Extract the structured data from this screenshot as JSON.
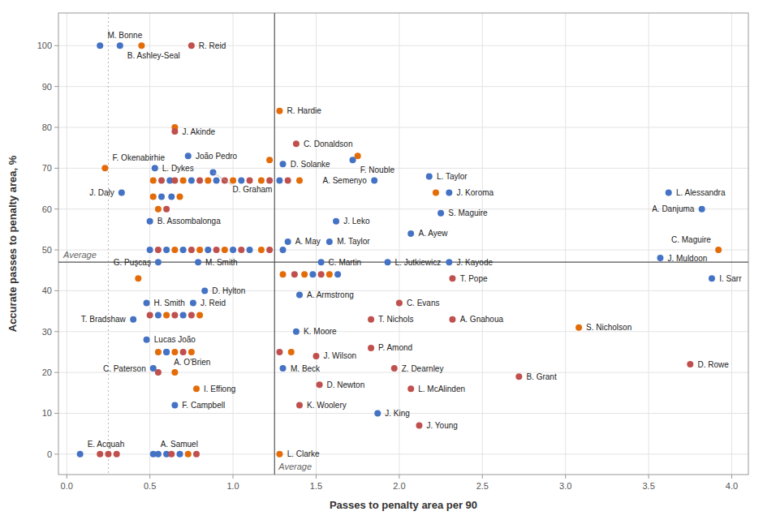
{
  "chart_data": {
    "type": "scatter",
    "xlabel": "Passes to penalty area per 90",
    "ylabel": "Accurate passes to penalty area, %",
    "xlim": [
      -0.05,
      4.1
    ],
    "ylim": [
      -5,
      108
    ],
    "xticks": [
      {
        "value": 0,
        "label": "0.0"
      },
      0.5,
      {
        "value": 1,
        "label": "1.0"
      },
      1.5,
      {
        "value": 2,
        "label": "2.0"
      },
      2.5,
      {
        "value": 3,
        "label": "3.0"
      },
      3.5,
      {
        "value": 4,
        "label": "4.0"
      }
    ],
    "yticks": [
      0,
      10,
      20,
      30,
      40,
      50,
      60,
      70,
      80,
      90,
      100
    ],
    "grid": true,
    "reference_lines": [
      {
        "axis": "x",
        "value": 0.25,
        "line_style": "dotted"
      },
      {
        "axis": "x",
        "value": 1.25,
        "line_style": "solid",
        "label": "Average"
      },
      {
        "axis": "y",
        "value": 47,
        "line_style": "solid",
        "label": "Average"
      }
    ],
    "series": [
      {
        "x": [
          0.45,
          0.65,
          1.22,
          1.75,
          0.52,
          0.57,
          0.62,
          0.65,
          0.7,
          0.75,
          0.8,
          0.85,
          0.9,
          0.95,
          1.0,
          1.05,
          1.1,
          1.17,
          1.22,
          1.28,
          1.33,
          1.4,
          0.52,
          0.57,
          0.63,
          0.68,
          0.55,
          0.6,
          2.22,
          0.5,
          0.55,
          0.6,
          0.65,
          0.7,
          0.75,
          0.8,
          0.85,
          0.9,
          0.95,
          1.0,
          1.05,
          1.1,
          1.17,
          1.22,
          1.3,
          1.3,
          1.37,
          1.43,
          1.48,
          1.53,
          1.58,
          1.63,
          0.43,
          0.5,
          0.55,
          0.6,
          0.65,
          0.7,
          0.75,
          0.8,
          0.55,
          0.6,
          0.65,
          0.7,
          0.75,
          1.28,
          1.35,
          0.55,
          0.65,
          0.2,
          0.25,
          0.3,
          0.55,
          0.6,
          0.63,
          0.68,
          0.73,
          0.78
        ],
        "values": [
          100,
          80,
          72,
          73,
          67,
          67,
          67,
          67,
          67,
          67,
          67,
          67,
          67,
          67,
          67,
          67,
          67,
          67,
          67,
          67,
          67,
          67,
          63,
          63,
          63,
          63,
          60,
          60,
          64,
          50,
          50,
          50,
          50,
          50,
          50,
          50,
          50,
          50,
          50,
          50,
          50,
          50,
          50,
          50,
          50,
          44,
          44,
          44,
          44,
          44,
          44,
          44,
          43,
          34,
          34,
          34,
          34,
          34,
          34,
          34,
          25,
          25,
          25,
          25,
          25,
          25,
          25,
          20,
          20,
          0,
          0,
          0,
          0,
          0,
          0,
          0,
          0,
          0
        ],
        "colors": [
          "#E36C09",
          "#E36C09",
          "#E36C09",
          "#E36C09",
          "#E36C09",
          "#C0504D",
          "#4472C4",
          "#C0504D",
          "#E36C09",
          "#4472C4",
          "#C0504D",
          "#E36C09",
          "#4472C4",
          "#C0504D",
          "#E36C09",
          "#4472C4",
          "#C0504D",
          "#E36C09",
          "#C0504D",
          "#4472C4",
          "#C0504D",
          "#E36C09",
          "#E36C09",
          "#4472C4",
          "#4472C4",
          "#E36C09",
          "#E36C09",
          "#C0504D",
          "#E36C09",
          "#4472C4",
          "#C0504D",
          "#4472C4",
          "#E36C09",
          "#4472C4",
          "#C0504D",
          "#E36C09",
          "#4472C4",
          "#C0504D",
          "#E36C09",
          "#4472C4",
          "#C0504D",
          "#4472C4",
          "#E36C09",
          "#C0504D",
          "#4472C4",
          "#E36C09",
          "#C0504D",
          "#E36C09",
          "#4472C4",
          "#C0504D",
          "#E36C09",
          "#4472C4",
          "#E36C09",
          "#C0504D",
          "#4472C4",
          "#E36C09",
          "#C0504D",
          "#4472C4",
          "#C0504D",
          "#E36C09",
          "#E36C09",
          "#4472C4",
          "#E36C09",
          "#C0504D",
          "#E36C09",
          "#C0504D",
          "#E36C09",
          "#C0504D",
          "#E36C09",
          "#C0504D",
          "#C0504D",
          "#C0504D",
          "#4472C4",
          "#4472C4",
          "#C0504D",
          "#4472C4",
          "#E36C09",
          "#C0504D"
        ]
      },
      {
        "labels": [
          "M. Bonne",
          "B. Ashley-Seal",
          "R. Reid",
          "R. Hardie",
          "J. Akinde",
          "C. Donaldson",
          "João Pedro",
          "D. Solanke",
          "F. Nouble",
          "F. Okenabirhie",
          "L. Dykes",
          "D. Graham",
          "L. Taylor",
          "A. Semenyo",
          "J. Daly",
          "J. Koroma",
          "S. Maguire",
          "B. Assombalonga",
          "J. Leko",
          "A. Ayew",
          "L. Alessandra",
          "A. Danjuma",
          "A. May",
          "M. Taylor",
          "C. Martin",
          "G. Puşcaş",
          "M. Smith",
          "L. Jutkiewicz",
          "J. Kayode",
          "J. Muldoon",
          "C. Maguire",
          "I. Sarr",
          "D. Hylton",
          "H. Smith",
          "J. Reid",
          "A. Armstrong",
          "T. Bradshaw",
          "T. Pope",
          "C. Evans",
          "T. Nichols",
          "A. Gnahoua",
          "K. Moore",
          "Lucas João",
          "A. O'Brien",
          "S. Nicholson",
          "P. Amond",
          "J. Wilson",
          "C. Paterson",
          "M. Beck",
          "Z. Dearnley",
          "D. Rowe",
          "I. Effiong",
          "D. Newton",
          "L. McAlinden",
          "B. Grant",
          "F. Campbell",
          "K. Woolery",
          "J. King",
          "J. Young",
          "E. Acquah",
          "A. Samuel",
          "L. Clarke"
        ],
        "x": [
          0.2,
          0.32,
          0.75,
          1.28,
          0.65,
          1.38,
          0.73,
          1.3,
          1.72,
          0.23,
          0.53,
          0.88,
          2.18,
          1.85,
          0.33,
          2.3,
          2.25,
          0.5,
          1.62,
          2.07,
          3.62,
          3.82,
          1.33,
          1.58,
          1.53,
          0.55,
          0.79,
          1.93,
          2.3,
          3.57,
          3.92,
          3.88,
          0.83,
          0.48,
          0.76,
          1.4,
          0.4,
          2.32,
          2.0,
          1.83,
          2.32,
          1.38,
          0.48,
          0.6,
          3.08,
          1.83,
          1.5,
          0.52,
          1.3,
          1.97,
          3.75,
          0.78,
          1.52,
          2.07,
          2.72,
          0.65,
          1.4,
          1.87,
          2.12,
          0.08,
          0.52,
          1.28
        ],
        "values": [
          100,
          100,
          100,
          84,
          79,
          76,
          73,
          71,
          72,
          70,
          70,
          69,
          68,
          67,
          64,
          64,
          59,
          57,
          57,
          54,
          64,
          60,
          52,
          52,
          47,
          47,
          47,
          47,
          47,
          48,
          50,
          43,
          40,
          37,
          37,
          39,
          33,
          43,
          37,
          33,
          33,
          30,
          28,
          25,
          31,
          26,
          24,
          21,
          21,
          21,
          22,
          16,
          17,
          16,
          19,
          12,
          12,
          10,
          7,
          0,
          0,
          0
        ],
        "colors": [
          "#4472C4",
          "#4472C4",
          "#C0504D",
          "#E36C09",
          "#C0504D",
          "#C0504D",
          "#4472C4",
          "#4472C4",
          "#4472C4",
          "#E36C09",
          "#4472C4",
          "#4472C4",
          "#4472C4",
          "#4472C4",
          "#4472C4",
          "#4472C4",
          "#4472C4",
          "#4472C4",
          "#4472C4",
          "#4472C4",
          "#4472C4",
          "#4472C4",
          "#4472C4",
          "#4472C4",
          "#4472C4",
          "#4472C4",
          "#4472C4",
          "#4472C4",
          "#4472C4",
          "#4472C4",
          "#E36C09",
          "#4472C4",
          "#4472C4",
          "#4472C4",
          "#4472C4",
          "#4472C4",
          "#4472C4",
          "#C0504D",
          "#C0504D",
          "#C0504D",
          "#C0504D",
          "#4472C4",
          "#4472C4",
          "#4472C4",
          "#E36C09",
          "#C0504D",
          "#C0504D",
          "#4472C4",
          "#4472C4",
          "#C0504D",
          "#C0504D",
          "#E36C09",
          "#C0504D",
          "#C0504D",
          "#C0504D",
          "#4472C4",
          "#C0504D",
          "#4472C4",
          "#C0504D",
          "#4472C4",
          "#4472C4",
          "#E36C09"
        ]
      }
    ]
  }
}
